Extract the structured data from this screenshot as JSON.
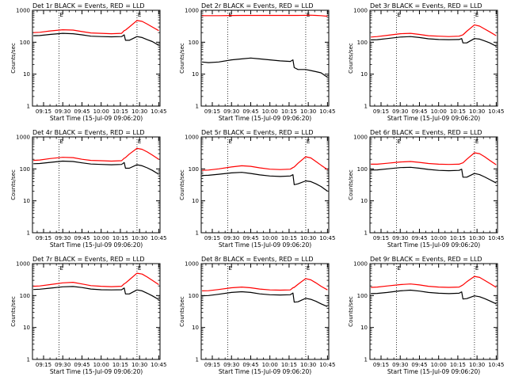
{
  "colors": {
    "events": "#000000",
    "lld": "#ff0000",
    "background": "#ffffff"
  },
  "chart_data": [
    {
      "id": "p1",
      "type": "line",
      "title": "Det 1r BLACK = Events, RED = LLD",
      "xlabel": "Start Time (15-Jul-09 09:06:20)",
      "ylabel": "Counts/sec",
      "yscale": "log",
      "ylim": [
        1,
        1000
      ],
      "y_ticks": [
        "1",
        "10",
        "100",
        "1000"
      ],
      "x_ticks": [
        "09:15",
        "09:30",
        "09:45",
        "10:00",
        "10:15",
        "10:30",
        "10:45"
      ],
      "x_tick_minutes": [
        15,
        30,
        45,
        60,
        75,
        90,
        105
      ],
      "xlim_minutes": [
        6.33,
        106
      ],
      "marker_minutes": [
        27,
        88
      ],
      "marker_labels": [
        "E",
        "E"
      ],
      "x_minutes": [
        7,
        12,
        20,
        30,
        38,
        45,
        52,
        60,
        68,
        76,
        78,
        79,
        82,
        88,
        92,
        96,
        100,
        105
      ],
      "series": [
        {
          "color": "lld",
          "values": [
            200,
            205,
            225,
            245,
            240,
            215,
            195,
            190,
            185,
            190,
            230,
            240,
            300,
            480,
            450,
            370,
            300,
            230
          ]
        },
        {
          "color": "events",
          "values": [
            160,
            162,
            175,
            190,
            185,
            170,
            155,
            150,
            148,
            150,
            170,
            115,
            115,
            150,
            140,
            120,
            105,
            80
          ]
        }
      ]
    },
    {
      "id": "p2",
      "type": "line",
      "title": "Det 2r BLACK = Events, RED = LLD",
      "xlabel": "Start Time (15-Jul-09 09:06:20)",
      "ylabel": "Counts/sec",
      "yscale": "log",
      "ylim": [
        1,
        1000
      ],
      "y_ticks": [
        "1",
        "10",
        "100",
        "1000"
      ],
      "x_ticks": [
        "09:15",
        "09:30",
        "09:45",
        "10:00",
        "10:15",
        "10:30",
        "10:45"
      ],
      "x_tick_minutes": [
        15,
        30,
        45,
        60,
        75,
        90,
        105
      ],
      "xlim_minutes": [
        6.33,
        106
      ],
      "marker_minutes": [
        27,
        88
      ],
      "marker_labels": [
        "E",
        "E"
      ],
      "x_minutes": [
        7,
        12,
        20,
        30,
        38,
        45,
        52,
        60,
        68,
        76,
        78,
        79,
        82,
        88,
        92,
        96,
        100,
        105
      ],
      "series": [
        {
          "color": "lld",
          "values": [
            680,
            680,
            680,
            685,
            690,
            690,
            690,
            690,
            690,
            690,
            690,
            690,
            690,
            695,
            700,
            690,
            680,
            650
          ]
        },
        {
          "color": "events",
          "values": [
            24,
            23,
            24,
            28,
            30,
            32,
            30,
            28,
            26,
            25,
            28,
            16,
            14,
            14,
            13,
            12,
            11,
            8
          ]
        }
      ]
    },
    {
      "id": "p3",
      "type": "line",
      "title": "Det 3r BLACK = Events, RED = LLD",
      "xlabel": "Start Time (15-Jul-09 09:06:20)",
      "ylabel": "Counts/sec",
      "yscale": "log",
      "ylim": [
        1,
        1000
      ],
      "y_ticks": [
        "1",
        "10",
        "100",
        "1000"
      ],
      "x_ticks": [
        "09:15",
        "09:30",
        "09:45",
        "10:00",
        "10:15",
        "10:30",
        "10:45"
      ],
      "x_tick_minutes": [
        15,
        30,
        45,
        60,
        75,
        90,
        105
      ],
      "xlim_minutes": [
        6.33,
        106
      ],
      "marker_minutes": [
        27,
        88
      ],
      "marker_labels": [
        "E",
        "E"
      ],
      "x_minutes": [
        7,
        12,
        20,
        30,
        38,
        45,
        52,
        60,
        68,
        76,
        78,
        79,
        82,
        88,
        92,
        96,
        100,
        105
      ],
      "series": [
        {
          "color": "lld",
          "values": [
            145,
            150,
            165,
            185,
            190,
            175,
            160,
            155,
            150,
            155,
            165,
            170,
            220,
            350,
            320,
            260,
            210,
            160
          ]
        },
        {
          "color": "events",
          "values": [
            118,
            120,
            130,
            145,
            150,
            140,
            128,
            122,
            120,
            122,
            130,
            95,
            95,
            130,
            125,
            110,
            95,
            75
          ]
        }
      ]
    },
    {
      "id": "p4",
      "type": "line",
      "title": "Det 4r BLACK = Events, RED = LLD",
      "xlabel": "Start Time (15-Jul-09 09:06:20)",
      "ylabel": "Counts/sec",
      "yscale": "log",
      "ylim": [
        1,
        1000
      ],
      "y_ticks": [
        "1",
        "10",
        "100",
        "1000"
      ],
      "x_ticks": [
        "09:15",
        "09:30",
        "09:45",
        "10:00",
        "10:15",
        "10:30",
        "10:45"
      ],
      "x_tick_minutes": [
        15,
        30,
        45,
        60,
        75,
        90,
        105
      ],
      "xlim_minutes": [
        6.33,
        106
      ],
      "marker_minutes": [
        27,
        88
      ],
      "marker_labels": [
        "E",
        "E"
      ],
      "x_minutes": [
        7,
        12,
        20,
        30,
        38,
        45,
        52,
        60,
        68,
        76,
        78,
        79,
        82,
        88,
        92,
        96,
        100,
        105
      ],
      "series": [
        {
          "color": "lld",
          "values": [
            185,
            190,
            210,
            230,
            225,
            200,
            185,
            180,
            175,
            180,
            215,
            225,
            290,
            440,
            410,
            340,
            270,
            200
          ]
        },
        {
          "color": "events",
          "values": [
            145,
            148,
            160,
            175,
            170,
            155,
            142,
            138,
            135,
            138,
            158,
            105,
            105,
            135,
            125,
            108,
            90,
            68
          ]
        }
      ]
    },
    {
      "id": "p5",
      "type": "line",
      "title": "Det 5r BLACK = Events, RED = LLD",
      "xlabel": "Start Time (15-Jul-09 09:06:20)",
      "ylabel": "Counts/sec",
      "yscale": "log",
      "ylim": [
        1,
        1000
      ],
      "y_ticks": [
        "1",
        "10",
        "100",
        "1000"
      ],
      "x_ticks": [
        "09:15",
        "09:30",
        "09:45",
        "10:00",
        "10:15",
        "10:30",
        "10:45"
      ],
      "x_tick_minutes": [
        15,
        30,
        45,
        60,
        75,
        90,
        105
      ],
      "xlim_minutes": [
        6.33,
        106
      ],
      "marker_minutes": [
        27,
        88
      ],
      "marker_labels": [
        "E",
        "E"
      ],
      "x_minutes": [
        7,
        12,
        20,
        30,
        38,
        45,
        52,
        60,
        68,
        76,
        78,
        79,
        82,
        88,
        92,
        96,
        100,
        105
      ],
      "series": [
        {
          "color": "lld",
          "values": [
            90,
            92,
            100,
            115,
            125,
            120,
            108,
            98,
            95,
            98,
            110,
            115,
            150,
            240,
            220,
            170,
            130,
            95
          ]
        },
        {
          "color": "events",
          "values": [
            62,
            63,
            68,
            75,
            78,
            72,
            65,
            60,
            58,
            60,
            66,
            32,
            34,
            42,
            40,
            34,
            28,
            20
          ]
        }
      ]
    },
    {
      "id": "p6",
      "type": "line",
      "title": "Det 6r BLACK = Events, RED = LLD",
      "xlabel": "Start Time (15-Jul-09 09:06:20)",
      "ylabel": "Counts/sec",
      "yscale": "log",
      "ylim": [
        1,
        1000
      ],
      "y_ticks": [
        "1",
        "10",
        "100",
        "1000"
      ],
      "x_ticks": [
        "09:15",
        "09:30",
        "09:45",
        "10:00",
        "10:15",
        "10:30",
        "10:45"
      ],
      "x_tick_minutes": [
        15,
        30,
        45,
        60,
        75,
        90,
        105
      ],
      "xlim_minutes": [
        6.33,
        106
      ],
      "marker_minutes": [
        27,
        88
      ],
      "marker_labels": [
        "E",
        "E"
      ],
      "x_minutes": [
        7,
        12,
        20,
        30,
        38,
        45,
        52,
        60,
        68,
        76,
        78,
        79,
        82,
        88,
        92,
        96,
        100,
        105
      ],
      "series": [
        {
          "color": "lld",
          "values": [
            140,
            140,
            150,
            165,
            170,
            160,
            148,
            140,
            138,
            140,
            150,
            155,
            200,
            320,
            300,
            240,
            185,
            135
          ]
        },
        {
          "color": "events",
          "values": [
            92,
            93,
            100,
            110,
            112,
            105,
            96,
            90,
            88,
            90,
            98,
            55,
            55,
            72,
            66,
            56,
            46,
            36
          ]
        }
      ]
    },
    {
      "id": "p7",
      "type": "line",
      "title": "Det 7r BLACK = Events, RED = LLD",
      "xlabel": "Start Time (15-Jul-09 09:06:20)",
      "ylabel": "Counts/sec",
      "yscale": "log",
      "ylim": [
        1,
        1000
      ],
      "y_ticks": [
        "1",
        "10",
        "100",
        "1000"
      ],
      "x_ticks": [
        "09:15",
        "09:30",
        "09:45",
        "10:00",
        "10:15",
        "10:30",
        "10:45"
      ],
      "x_tick_minutes": [
        15,
        30,
        45,
        60,
        75,
        90,
        105
      ],
      "xlim_minutes": [
        6.33,
        106
      ],
      "marker_minutes": [
        27,
        88
      ],
      "marker_labels": [
        "E",
        "E"
      ],
      "x_minutes": [
        7,
        12,
        20,
        30,
        38,
        45,
        52,
        60,
        68,
        76,
        78,
        79,
        82,
        88,
        92,
        96,
        100,
        105
      ],
      "series": [
        {
          "color": "lld",
          "values": [
            195,
            200,
            220,
            250,
            260,
            230,
            205,
            195,
            190,
            195,
            235,
            245,
            310,
            500,
            470,
            380,
            300,
            220
          ]
        },
        {
          "color": "events",
          "values": [
            155,
            158,
            170,
            188,
            192,
            178,
            160,
            152,
            150,
            152,
            172,
            112,
            112,
            150,
            140,
            118,
            98,
            75
          ]
        }
      ]
    },
    {
      "id": "p8",
      "type": "line",
      "title": "Det 8r BLACK = Events, RED = LLD",
      "xlabel": "Start Time (15-Jul-09 09:06:20)",
      "ylabel": "Counts/sec",
      "yscale": "log",
      "ylim": [
        1,
        1000
      ],
      "y_ticks": [
        "1",
        "10",
        "100",
        "1000"
      ],
      "x_ticks": [
        "09:15",
        "09:30",
        "09:45",
        "10:00",
        "10:15",
        "10:30",
        "10:45"
      ],
      "x_tick_minutes": [
        15,
        30,
        45,
        60,
        75,
        90,
        105
      ],
      "xlim_minutes": [
        6.33,
        106
      ],
      "marker_minutes": [
        27,
        88
      ],
      "marker_labels": [
        "E",
        "E"
      ],
      "x_minutes": [
        7,
        12,
        20,
        30,
        38,
        45,
        52,
        60,
        68,
        76,
        78,
        79,
        82,
        88,
        92,
        96,
        100,
        105
      ],
      "series": [
        {
          "color": "lld",
          "values": [
            140,
            142,
            155,
            175,
            185,
            175,
            160,
            150,
            148,
            150,
            175,
            180,
            225,
            340,
            310,
            250,
            195,
            150
          ]
        },
        {
          "color": "events",
          "values": [
            98,
            100,
            110,
            125,
            132,
            125,
            113,
            106,
            104,
            106,
            120,
            62,
            64,
            82,
            76,
            66,
            55,
            45
          ]
        }
      ]
    },
    {
      "id": "p9",
      "type": "line",
      "title": "Det 9r BLACK = Events, RED = LLD",
      "xlabel": "Start Time (15-Jul-09 09:06:20)",
      "ylabel": "Counts/sec",
      "yscale": "log",
      "ylim": [
        1,
        1000
      ],
      "y_ticks": [
        "1",
        "10",
        "100",
        "1000"
      ],
      "x_ticks": [
        "09:15",
        "09:30",
        "09:45",
        "10:00",
        "10:15",
        "10:30",
        "10:45"
      ],
      "x_tick_minutes": [
        15,
        30,
        45,
        60,
        75,
        90,
        105
      ],
      "xlim_minutes": [
        6.33,
        106
      ],
      "marker_minutes": [
        27,
        88
      ],
      "marker_labels": [
        "E",
        "E"
      ],
      "x_minutes": [
        7,
        12,
        20,
        30,
        38,
        45,
        52,
        60,
        68,
        76,
        78,
        79,
        82,
        88,
        92,
        96,
        100,
        105
      ],
      "series": [
        {
          "color": "lld",
          "values": [
            180,
            185,
            200,
            220,
            230,
            215,
            195,
            185,
            180,
            185,
            205,
            215,
            270,
            400,
            370,
            300,
            240,
            180
          ]
        },
        {
          "color": "events",
          "values": [
            115,
            117,
            125,
            140,
            148,
            138,
            125,
            118,
            115,
            118,
            130,
            78,
            80,
            98,
            92,
            80,
            68,
            55
          ]
        }
      ]
    }
  ]
}
